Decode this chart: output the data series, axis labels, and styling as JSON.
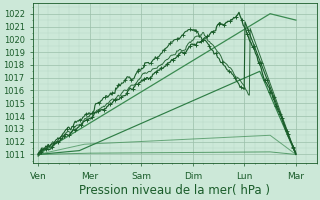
{
  "bg_color": "#cce8d8",
  "grid_color_major": "#9bbfaa",
  "grid_color_minor": "#b8d8c5",
  "line_dark": "#1a5c2a",
  "line_mid": "#2e7d45",
  "line_thin": "#3a8a50",
  "xlabel": "Pression niveau de la mer( hPa )",
  "xlabel_fontsize": 8.5,
  "ylabel_ticks": [
    1011,
    1012,
    1013,
    1014,
    1015,
    1016,
    1017,
    1018,
    1019,
    1020,
    1021,
    1022
  ],
  "xtick_labels": [
    "Ven",
    "Mer",
    "Sam",
    "Dim",
    "Lun",
    "Mar"
  ],
  "xtick_positions": [
    0,
    1,
    2,
    3,
    4,
    5
  ],
  "ylim": [
    1010.3,
    1022.8
  ],
  "xlim": [
    -0.1,
    5.4
  ],
  "figsize": [
    3.2,
    2.0
  ],
  "dpi": 100,
  "n_points": 300
}
